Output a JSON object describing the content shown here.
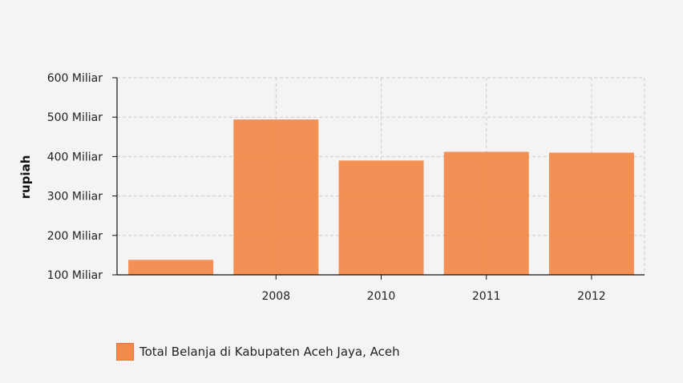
{
  "chart_data": {
    "type": "bar",
    "categories": [
      "",
      "2008",
      "2010",
      "2011",
      "2012"
    ],
    "values": [
      138,
      494,
      390,
      412,
      410
    ],
    "series": [
      {
        "name": "Total Belanja di Kabupaten Aceh Jaya, Aceh",
        "values": [
          138,
          494,
          390,
          412,
          410
        ]
      }
    ],
    "ylabel": "rupiah",
    "xlabel": "",
    "ylim": [
      100,
      600
    ],
    "yticks": [
      100,
      200,
      300,
      400,
      500,
      600
    ],
    "ytick_labels": [
      "100 Miliar",
      "200 Miliar",
      "300 Miliar",
      "400 Miliar",
      "500 Miliar",
      "600 Miliar"
    ],
    "grid": true,
    "legend_position": "bottom-left",
    "bar_color": "#f28a4c"
  }
}
